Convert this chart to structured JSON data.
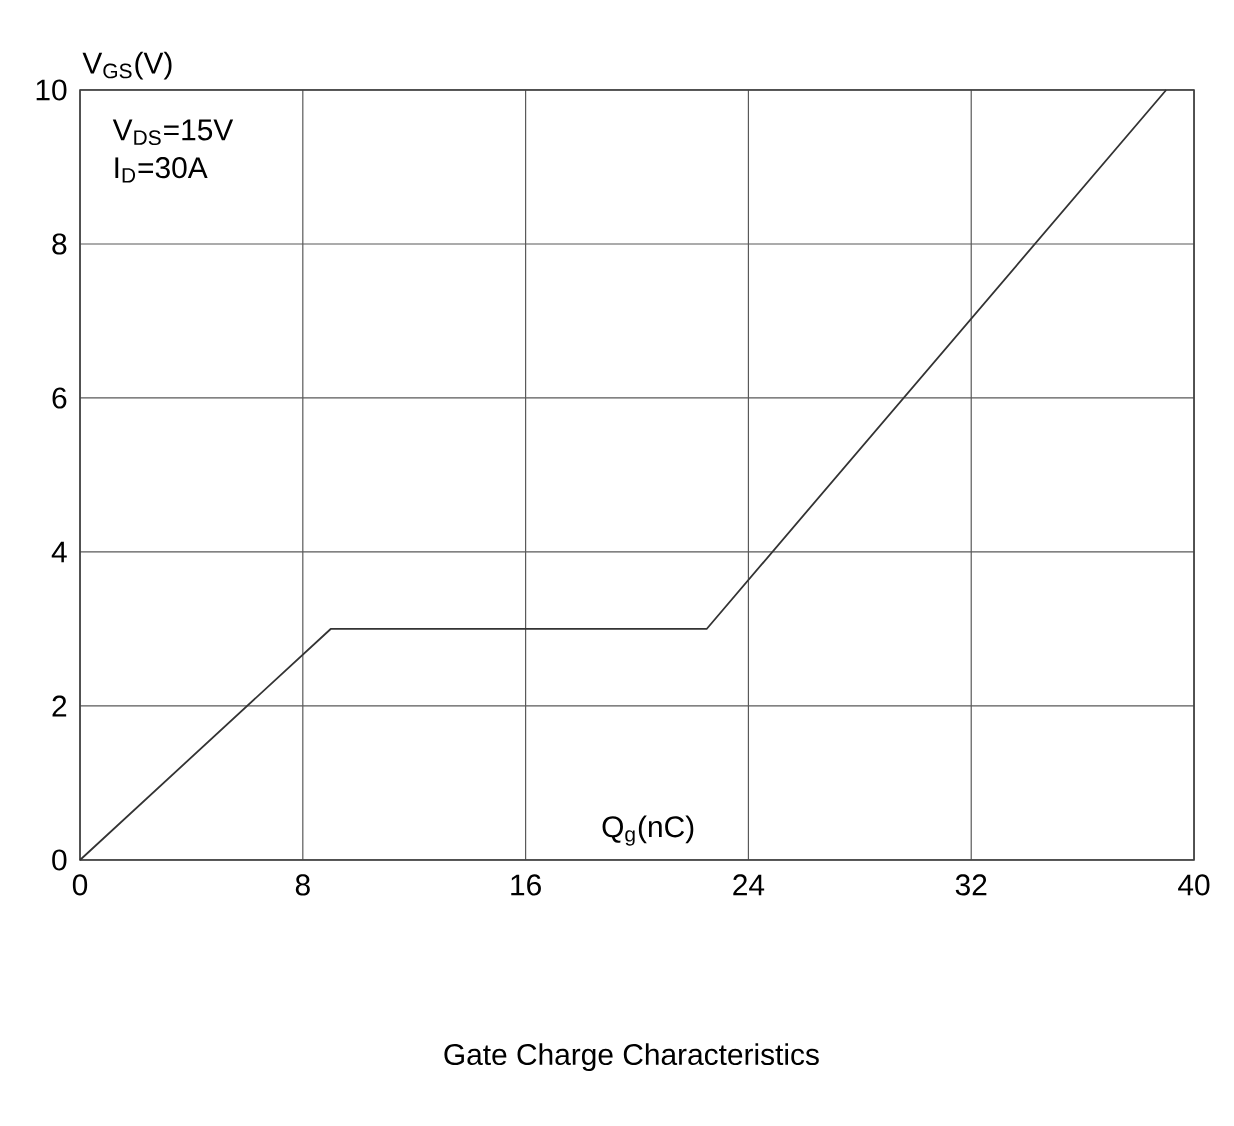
{
  "chart_data": {
    "type": "line",
    "title": "Gate Charge Characteristics",
    "xlabel": "Q$_{g}$(nC)",
    "ylabel": "V$_{GS}$(V)",
    "annotations": [
      "V$_{DS}$=15V",
      "I$_{D}$=30A"
    ],
    "x": [
      0,
      9,
      22.5,
      39
    ],
    "series": [
      {
        "color": "#333333",
        "values": [
          0,
          3,
          3,
          10
        ]
      }
    ],
    "xlim": [
      0,
      40
    ],
    "ylim": [
      0,
      10
    ],
    "xticks": [
      0,
      8,
      16,
      24,
      32,
      40
    ],
    "yticks": [
      0,
      2,
      4,
      6,
      8,
      10
    ],
    "grid": true,
    "marker": "none",
    "line_style": "solid"
  }
}
